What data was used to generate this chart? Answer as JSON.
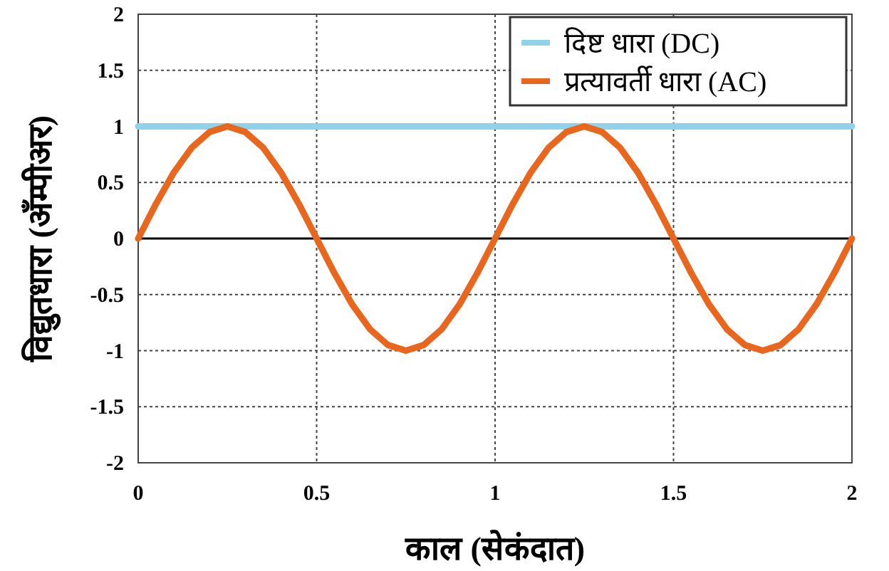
{
  "chart_data": {
    "type": "line",
    "xlabel": "काल (सेकंदात)",
    "ylabel": "विद्युतधारा (अँम्पीअर)",
    "xlim": [
      0,
      2
    ],
    "xticks": [
      0,
      0.5,
      1,
      1.5,
      2
    ],
    "ylim": [
      -2,
      2
    ],
    "yticks": [
      -2,
      -1.5,
      -1,
      -0.5,
      0,
      0.5,
      1,
      1.5,
      2
    ],
    "grid": true,
    "legend": "top right",
    "ref_lines": [
      {
        "axis": "y",
        "value": 0,
        "color": "#000000"
      }
    ],
    "series": [
      {
        "name": "दिष्ट धारा (DC)",
        "color": "#8fd3ea",
        "x": [
          0,
          2
        ],
        "values": [
          1,
          1
        ]
      },
      {
        "name": "प्रत्यावर्ती धारा (AC)",
        "color": "#e8661e",
        "x": [
          0,
          0.05,
          0.1,
          0.15,
          0.2,
          0.25,
          0.3,
          0.35,
          0.4,
          0.45,
          0.5,
          0.55,
          0.6,
          0.65,
          0.7,
          0.75,
          0.8,
          0.85,
          0.9,
          0.95,
          1,
          1.05,
          1.1,
          1.15,
          1.2,
          1.25,
          1.3,
          1.35,
          1.4,
          1.45,
          1.5,
          1.55,
          1.6,
          1.65,
          1.7,
          1.75,
          1.8,
          1.85,
          1.9,
          1.95,
          2
        ],
        "values": [
          0,
          0.31,
          0.59,
          0.81,
          0.95,
          1,
          0.95,
          0.81,
          0.59,
          0.31,
          0,
          -0.31,
          -0.59,
          -0.81,
          -0.95,
          -1,
          -0.95,
          -0.81,
          -0.59,
          -0.31,
          0,
          0.31,
          0.59,
          0.81,
          0.95,
          1,
          0.95,
          0.81,
          0.59,
          0.31,
          0,
          -0.31,
          -0.59,
          -0.81,
          -0.95,
          -1,
          -0.95,
          -0.81,
          -0.59,
          -0.31,
          0
        ]
      }
    ]
  }
}
